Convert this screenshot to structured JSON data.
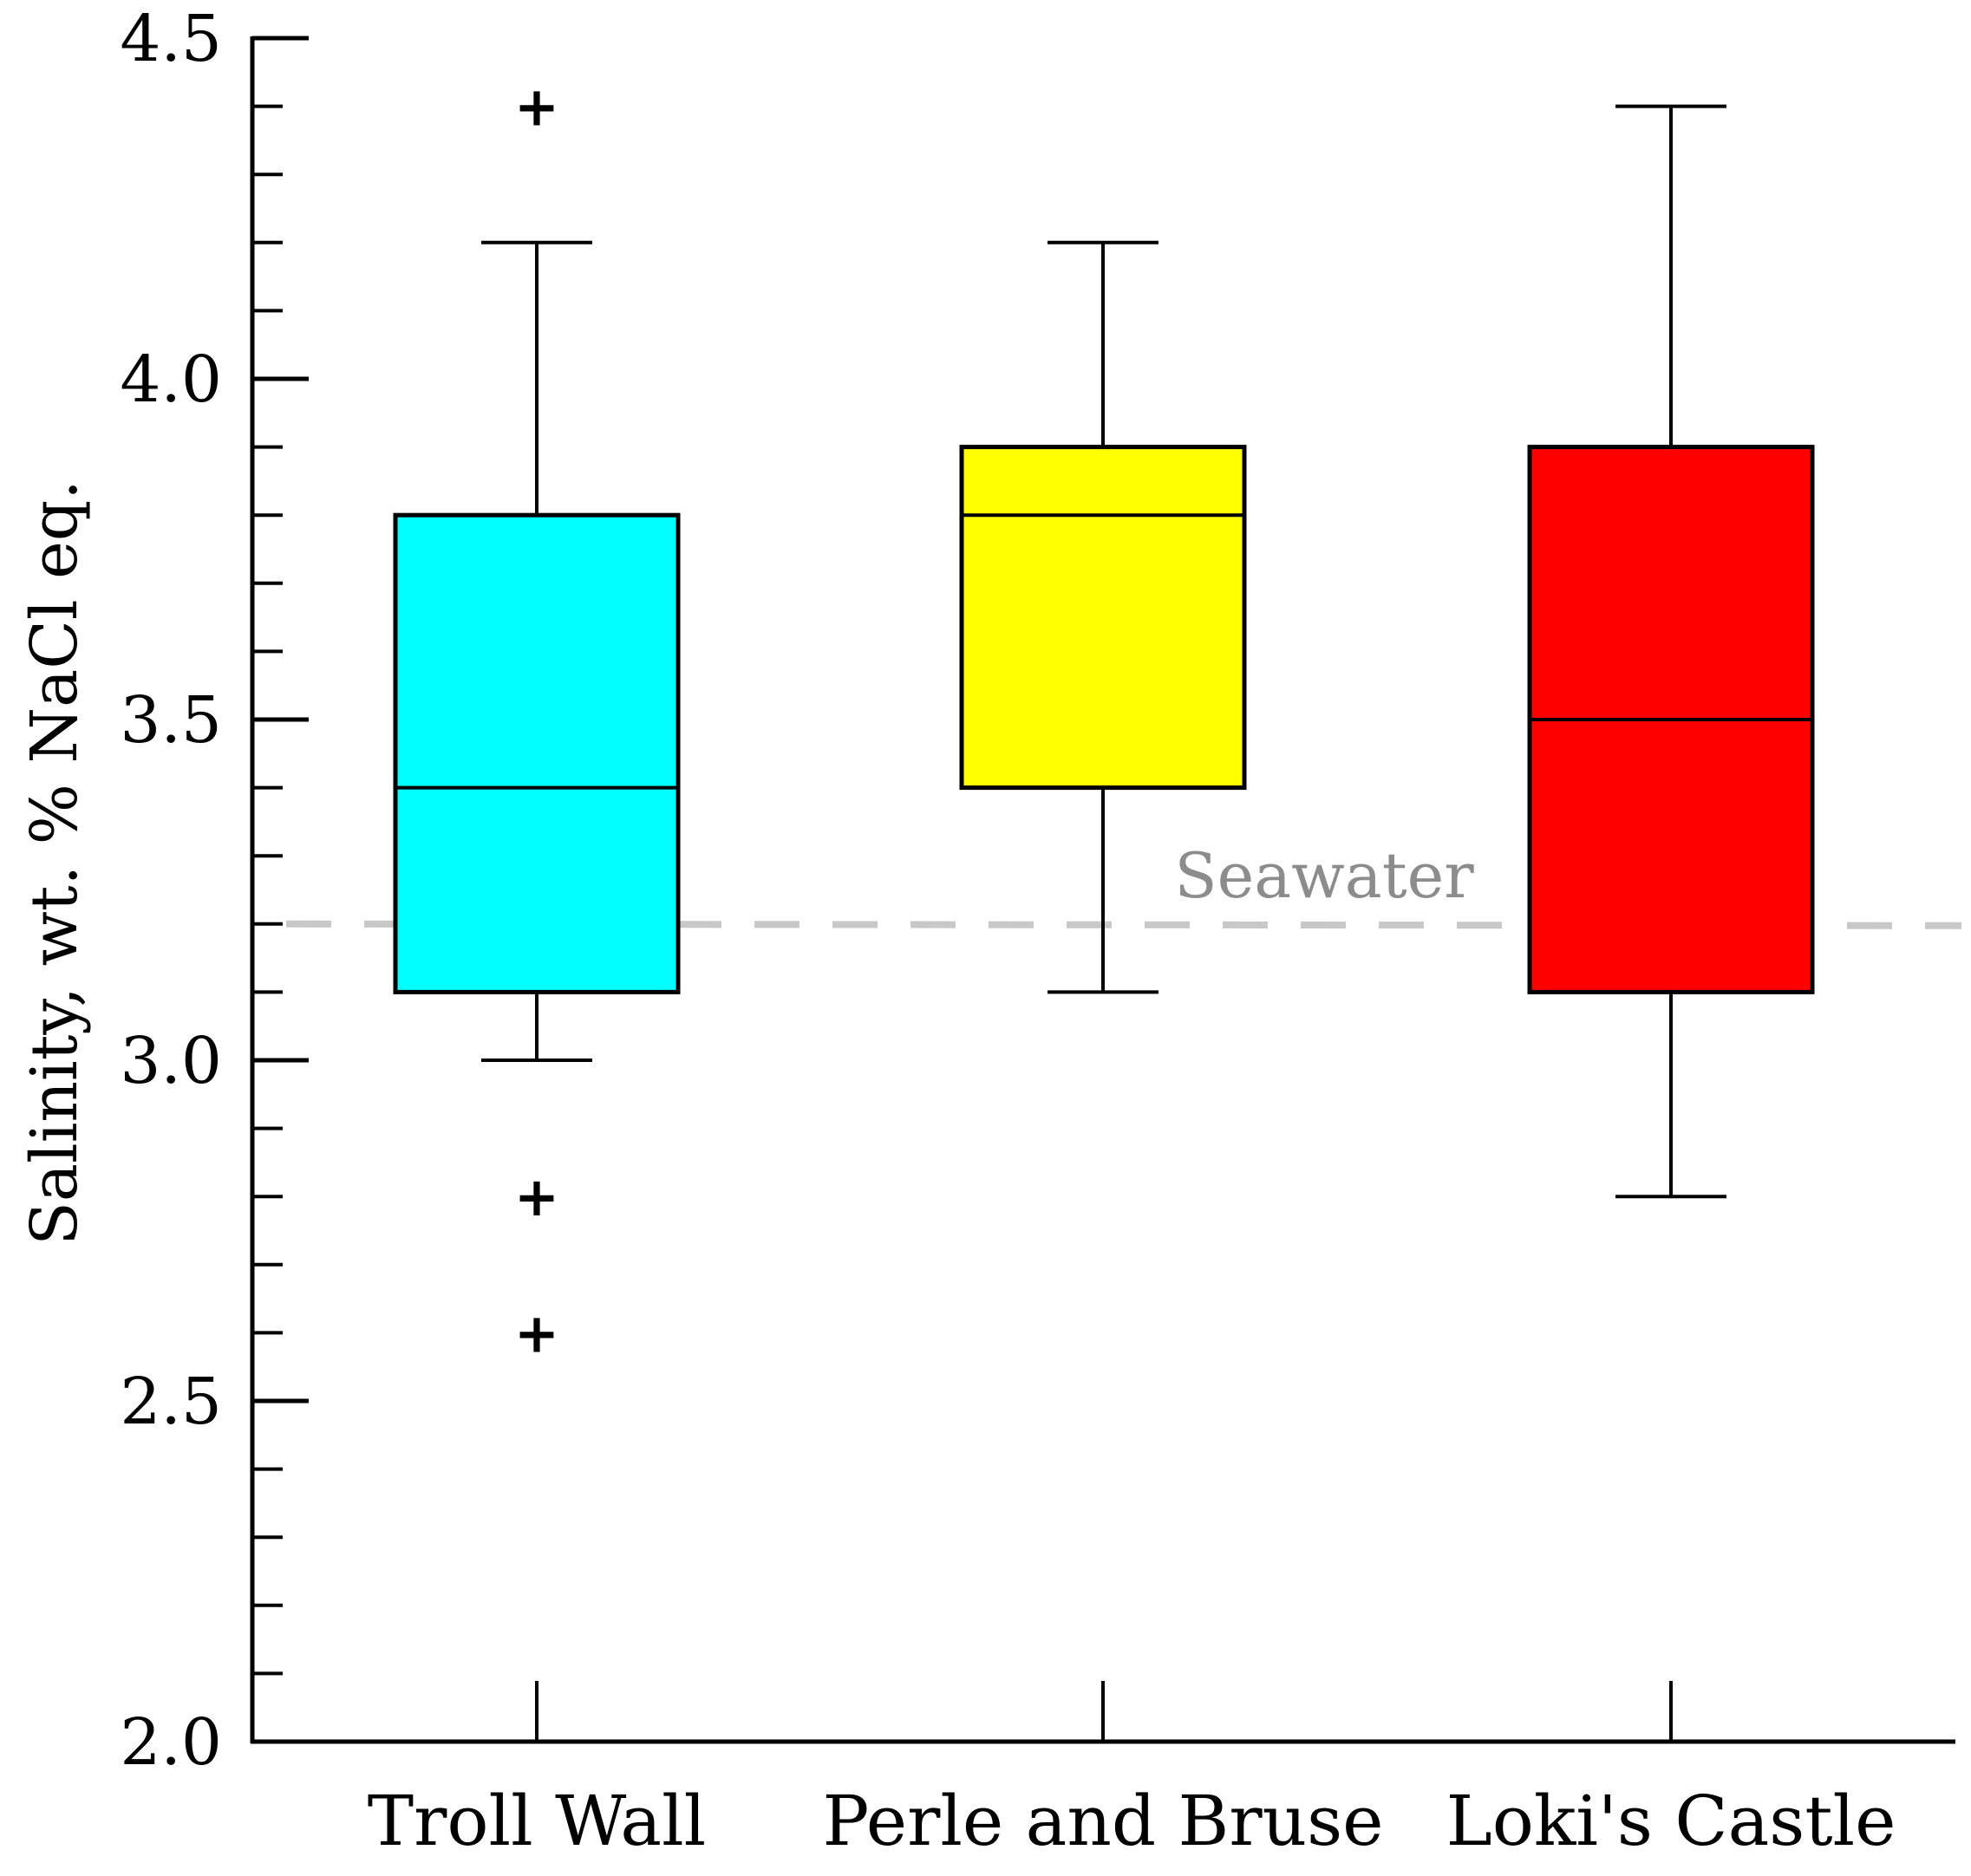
{
  "chart_data": {
    "type": "boxplot",
    "title": "",
    "xlabel": "",
    "ylabel": "Salinity, wt. % NaCl eq.",
    "ylim": [
      2.0,
      4.5
    ],
    "major_ticks": [
      2.0,
      2.5,
      3.0,
      3.5,
      4.0,
      4.5
    ],
    "tick_labels": [
      "2.0",
      "2.5",
      "3.0",
      "3.5",
      "4.0",
      "4.5"
    ],
    "minor_step": 0.1,
    "grid": false,
    "categories": [
      "Troll Wall",
      "Perle and Bruse",
      "Loki's Castle"
    ],
    "series": [
      {
        "name": "Troll Wall",
        "color": "#00FFFF",
        "whisker_low": 3.0,
        "q1": 3.1,
        "median": 3.4,
        "q3": 3.8,
        "whisker_high": 4.2,
        "outliers": [
          4.4,
          2.8,
          2.6
        ]
      },
      {
        "name": "Perle and Bruse",
        "color": "#FFFF00",
        "whisker_low": 3.1,
        "q1": 3.4,
        "median": 3.8,
        "q3": 3.9,
        "whisker_high": 4.2,
        "outliers": []
      },
      {
        "name": "Loki's Castle",
        "color": "#FF0000",
        "whisker_low": 2.8,
        "q1": 3.1,
        "median": 3.5,
        "q3": 3.9,
        "whisker_high": 4.4,
        "outliers": []
      }
    ],
    "reference_line": {
      "label": "Seawater",
      "value": 3.2,
      "color": "#C8C8C8",
      "label_color": "#8C8C8C"
    }
  }
}
